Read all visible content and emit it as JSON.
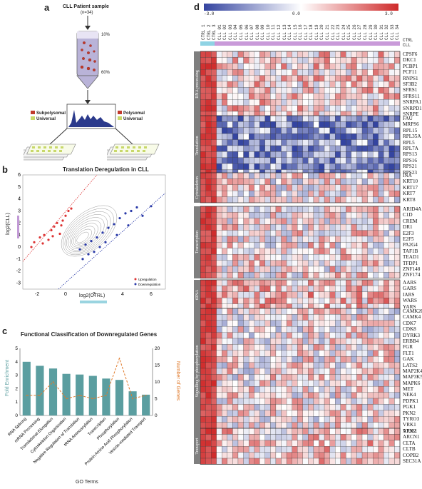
{
  "panel_a": {
    "label": "a",
    "title": "CLL Patient sample",
    "subtitle": "(n=34)",
    "pct_top": "10%",
    "pct_bottom": "60%",
    "legend_left": [
      "Subpolysomal",
      "Universal"
    ],
    "legend_right": [
      "Polysomal",
      "Universal"
    ],
    "colors": {
      "subpolysomal": "#c0392b",
      "polysomal": "#c0392b",
      "universal": "#c8d86a"
    }
  },
  "panel_b": {
    "label": "b",
    "chart_data": {
      "type": "scatter",
      "title": "Translation Deregulation in CLL",
      "xlabel": "log2(CTRL)",
      "ylabel": "log2(CLL)",
      "xlim": [
        -3,
        7
      ],
      "ylim": [
        -3.5,
        6
      ],
      "xticks": [
        "-2",
        "0",
        "2",
        "4",
        "6"
      ],
      "yticks": [
        "-3",
        "-2",
        "-1",
        "0",
        "1",
        "2",
        "3",
        "4",
        "5",
        "6"
      ],
      "legend": [
        "Upregulation",
        "Downregulation"
      ],
      "series": [
        {
          "name": "Upregulation",
          "color": "#d33",
          "points": [
            [
              -2.2,
              0.4
            ],
            [
              -1.8,
              0.8
            ],
            [
              -1.5,
              1.0
            ],
            [
              -1.2,
              0.6
            ],
            [
              -1.0,
              1.4
            ],
            [
              -0.8,
              1.7
            ],
            [
              -0.6,
              2.0
            ],
            [
              -0.3,
              1.8
            ],
            [
              0.0,
              2.6
            ],
            [
              0.2,
              3.0
            ],
            [
              -1.6,
              0.3
            ],
            [
              -2.4,
              0.0
            ],
            [
              -0.4,
              1.1
            ],
            [
              -0.9,
              0.9
            ],
            [
              0.4,
              3.2
            ],
            [
              -0.2,
              2.2
            ]
          ]
        },
        {
          "name": "Downregulation",
          "color": "#2a3aa8",
          "points": [
            [
              1.0,
              -0.2
            ],
            [
              1.4,
              0.2
            ],
            [
              1.8,
              0.5
            ],
            [
              2.2,
              0.8
            ],
            [
              2.6,
              1.2
            ],
            [
              3.0,
              1.6
            ],
            [
              3.4,
              1.9
            ],
            [
              3.8,
              2.4
            ],
            [
              4.2,
              2.8
            ],
            [
              4.6,
              3.0
            ],
            [
              5.0,
              3.3
            ],
            [
              2.0,
              -0.4
            ],
            [
              2.8,
              0.4
            ],
            [
              3.6,
              1.0
            ],
            [
              4.4,
              1.8
            ],
            [
              5.4,
              2.6
            ],
            [
              1.2,
              -1.0
            ],
            [
              1.6,
              -0.6
            ],
            [
              6.0,
              3.4
            ],
            [
              2.4,
              0.0
            ]
          ]
        }
      ]
    }
  },
  "panel_c": {
    "label": "c",
    "chart_data": {
      "type": "bar",
      "title": "Functional Classification of Downregulated Genes",
      "xlabel": "GO Terms",
      "ylabel": "Fold Enrichment",
      "y2label": "Number of Genes",
      "ylim": [
        0,
        5
      ],
      "y2lim": [
        0,
        20
      ],
      "categories": [
        "RNA Splicing",
        "mRNA Processing",
        "Translational Elongation",
        "Cytoskeleton Organization",
        "Negative Regulation of Translation",
        "tRNA Aminoacylation",
        "Transcription",
        "Phosphorylation",
        "Protein Amino Acid Phosphorylation",
        "Vesicle-mediated Transport"
      ],
      "series": [
        {
          "name": "Fold Enrichment",
          "type": "bar",
          "color": "#5b9ea0",
          "values": [
            4.0,
            3.7,
            3.5,
            3.1,
            3.05,
            2.95,
            2.75,
            2.65,
            1.8,
            1.55
          ]
        },
        {
          "name": "Number of Genes",
          "type": "line",
          "color": "#e07a2b",
          "values": [
            6,
            6,
            10,
            5,
            6,
            5,
            6,
            17,
            5,
            6
          ]
        }
      ]
    }
  },
  "panel_d": {
    "label": "d",
    "scale_min": "-3.0",
    "scale_mid": "0.0",
    "scale_max": "3.0",
    "row_legend": [
      "CTRL",
      "CLL"
    ],
    "samples": [
      "CTRL 1",
      "CTRL 2",
      "CTRL 3",
      "CLL 01",
      "CLL 02",
      "CLL 03",
      "CLL 04",
      "CLL 05",
      "CLL 06",
      "CLL 07",
      "CLL 08",
      "CLL 09",
      "CLL 10",
      "CLL 11",
      "CLL 12",
      "CLL 13",
      "CLL 14",
      "CLL 15",
      "CLL 16",
      "CLL 17",
      "CLL 18",
      "CLL 19",
      "CLL 20",
      "CLL 21",
      "CLL 22",
      "CLL 23",
      "CLL 24",
      "CLL 25",
      "CLL 26",
      "CLL 27",
      "CLL 28",
      "CLL 29",
      "CLL 30",
      "CLL 31",
      "CLL 32",
      "CLL 33",
      "CLL 34"
    ],
    "groups": [
      {
        "name": "RNA processing",
        "genes": [
          "CPSF6",
          "DKC1",
          "PCBP1",
          "PCF11",
          "RNPS1",
          "SF3B2",
          "SFRS1",
          "SFRS11",
          "SNRPA1",
          "SNRPD1",
          "SNRPE"
        ]
      },
      {
        "name": "Translation",
        "genes": [
          "FAU",
          "MRPS6",
          "RPL15",
          "RPL35A",
          "RPL5",
          "RPL7A",
          "RPS13",
          "RPS16",
          "RPS21",
          "RPS23"
        ]
      },
      {
        "name": "Cytoskeleton",
        "genes": [
          "INA",
          "KRT10",
          "KRT17",
          "KRT7",
          "KRT8"
        ]
      },
      {
        "name": "Transcription",
        "genes": [
          "ARID4A",
          "C1D",
          "CREM",
          "DR1",
          "E2F3",
          "E2F5",
          "PA2G4",
          "TAF1B",
          "TEAD1",
          "TFDP1",
          "ZNF148",
          "ZNF174"
        ]
      },
      {
        "name": "tRNA",
        "genes": [
          "AARS",
          "GARS",
          "IARS",
          "WARS",
          "YARS"
        ]
      },
      {
        "name": "Signalling by phosphorylation",
        "genes": [
          "CAMK2G",
          "CAMK4",
          "CDK7",
          "CDK8",
          "DYRK3",
          "ERBB4",
          "FGR",
          "FLT1",
          "GAK",
          "LATS2",
          "MAP2K4",
          "MAP3K5",
          "MAPK6",
          "MET",
          "NEK4",
          "PDPK1",
          "PGK1",
          "PKN2",
          "TYRO3",
          "VRK1",
          "VRK2"
        ]
      },
      {
        "name": "Transport",
        "genes": [
          "AP3S1",
          "ARCN1",
          "CLTA",
          "CLTB",
          "COPB2",
          "SEC31A"
        ]
      }
    ]
  }
}
